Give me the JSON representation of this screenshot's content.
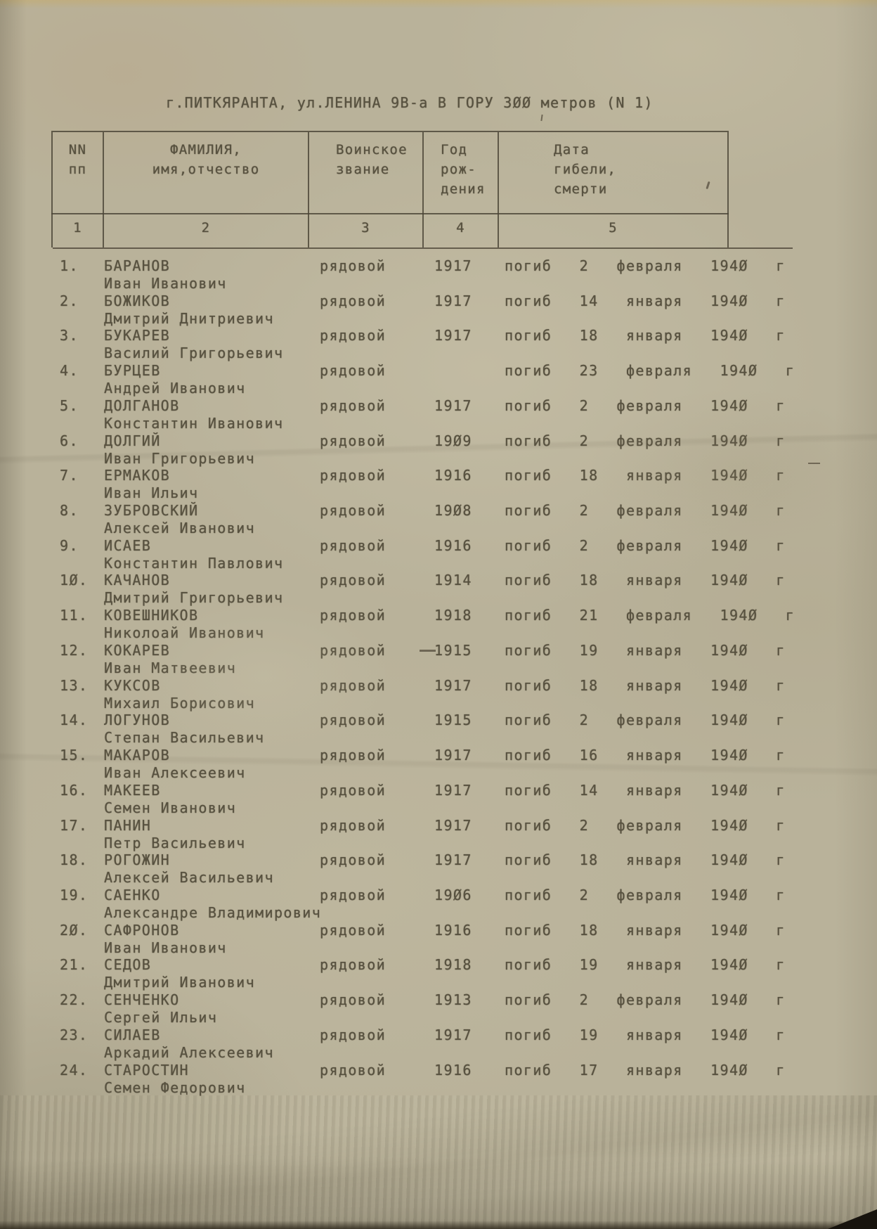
{
  "document": {
    "title": "г.ПИТКЯРАНТА, ул.ЛЕНИНА 9В-а В ГОРУ 300 метров (N 1)"
  },
  "colors": {
    "paper": "#b9b29a",
    "ink": "#57513f",
    "rule_lines": "#4b4436"
  },
  "table": {
    "headers": {
      "nn": {
        "line1": "NN",
        "line2": "пп",
        "col_number": "1"
      },
      "name": {
        "line1": "ФАМИЛИЯ,",
        "line2": "имя,отчество",
        "col_number": "2"
      },
      "rank": {
        "line1": "Воинское",
        "line2": "звание",
        "col_number": "3"
      },
      "year": {
        "line1": "Год",
        "line2": "рож-",
        "line3": "дения",
        "col_number": "4"
      },
      "date": {
        "line1": "Дата",
        "line2": "гибели,",
        "line3": "смерти",
        "col_number": "5"
      }
    },
    "rows": [
      {
        "n": "1.",
        "surname": "БАРАНОВ",
        "given": "Иван Иванович",
        "rank": "рядовой",
        "born": "1917",
        "died": "погиб 2 февраля 1940 г"
      },
      {
        "n": "2.",
        "surname": "БОЖИКОВ",
        "given": "Дмитрий Днитриевич",
        "rank": "рядовой",
        "born": "1917",
        "died": "погиб 14 января 1940 г"
      },
      {
        "n": "3.",
        "surname": "БУКАРЕВ",
        "given": "Василий Григорьевич",
        "rank": "рядовой",
        "born": "1917",
        "died": "погиб 18 января 1940 г"
      },
      {
        "n": "4.",
        "surname": "БУРЦЕВ",
        "given": "Андрей Иванович",
        "rank": "рядовой",
        "born": "",
        "died": "погиб 23 февраля 1940 г"
      },
      {
        "n": "5.",
        "surname": "ДОЛГАНОВ",
        "given": "Константин Иванович",
        "rank": "рядовой",
        "born": "1917",
        "died": "погиб 2 февраля 1940 г"
      },
      {
        "n": "6.",
        "surname": "ДОЛГИЙ",
        "given": "Иван Григорьевич",
        "rank": "рядовой",
        "born": "1909",
        "died": "погиб 2 февраля 1940 г"
      },
      {
        "n": "7.",
        "surname": "ЕРМАКОВ",
        "given": "Иван Ильич",
        "rank": "рядовой",
        "born": "1916",
        "died": "погиб 18 января 1940 г"
      },
      {
        "n": "8.",
        "surname": "ЗУБРОВСКИЙ",
        "given": "Алексей Иванович",
        "rank": "рядовой",
        "born": "1908",
        "died": "погиб 2 февраля 1940 г"
      },
      {
        "n": "9.",
        "surname": "ИСАЕВ",
        "given": "Константин Павлович",
        "rank": "рядовой",
        "born": "1916",
        "died": "погиб 2 февраля 1940 г"
      },
      {
        "n": "10.",
        "surname": "КАЧАНОВ",
        "given": "Дмитрий Григорьевич",
        "rank": "рядовой",
        "born": "1914",
        "died": "погиб 18 января 1940 г"
      },
      {
        "n": "11.",
        "surname": "КОВЕШНИКОВ",
        "given": "Николоай Иванович",
        "rank": "рядовой",
        "born": "1918",
        "died": "погиб 21 февраля 1940 г"
      },
      {
        "n": "12.",
        "surname": "КОКАРЕВ",
        "given": "Иван Матвеевич",
        "rank": "рядовой",
        "born": "1915",
        "died": "погиб 19 января 1940 г"
      },
      {
        "n": "13.",
        "surname": "КУКСОВ",
        "given": "Михаил Борисович",
        "rank": "рядовой",
        "born": "1917",
        "died": "погиб 18 января 1940 г"
      },
      {
        "n": "14.",
        "surname": "ЛОГУНОВ",
        "given": "Степан Васильевич",
        "rank": "рядовой",
        "born": "1915",
        "died": "погиб 2 февраля 1940 г"
      },
      {
        "n": "15.",
        "surname": "МАКАРОВ",
        "given": "Иван Алексеевич",
        "rank": "рядовой",
        "born": "1917",
        "died": "погиб 16 января 1940 г"
      },
      {
        "n": "16.",
        "surname": "МАКЕЕВ",
        "given": "Семен Иванович",
        "rank": "рядовой",
        "born": "1917",
        "died": "погиб 14 января 1940 г"
      },
      {
        "n": "17.",
        "surname": "ПАНИН",
        "given": "Петр Васильевич",
        "rank": "рядовой",
        "born": "1917",
        "died": "погиб 2 февраля 1940 г"
      },
      {
        "n": "18.",
        "surname": "РОГОЖИН",
        "given": "Алексей Васильевич",
        "rank": "рядовой",
        "born": "1917",
        "died": "погиб 18 января 1940 г"
      },
      {
        "n": "19.",
        "surname": "САЕНКО",
        "given": "Александре Владимирович",
        "rank": "рядовой",
        "born": "1906",
        "died": "погиб 2 февраля 1940 г"
      },
      {
        "n": "20.",
        "surname": "САФРОНОВ",
        "given": "Иван Иванович",
        "rank": "рядовой",
        "born": "1916",
        "died": "погиб 18 января 1940 г"
      },
      {
        "n": "21.",
        "surname": "СЕДОВ",
        "given": "Дмитрий Иванович",
        "rank": "рядовой",
        "born": "1918",
        "died": "погиб 19 января 1940 г"
      },
      {
        "n": "22.",
        "surname": "СЕНЧЕНКО",
        "given": "Сергей Ильич",
        "rank": "рядовой",
        "born": "1913",
        "died": "погиб 2 февраля 1940 г"
      },
      {
        "n": "23.",
        "surname": "СИЛАЕВ",
        "given": "Аркадий Алексеевич",
        "rank": "рядовой",
        "born": "1917",
        "died": "погиб 19 января 1940 г"
      },
      {
        "n": "24.",
        "surname": "СТАРОСТИН",
        "given": "Семен Федорович",
        "rank": "рядовой",
        "born": "1916",
        "died": "погиб 17 января 1940 г"
      }
    ]
  }
}
